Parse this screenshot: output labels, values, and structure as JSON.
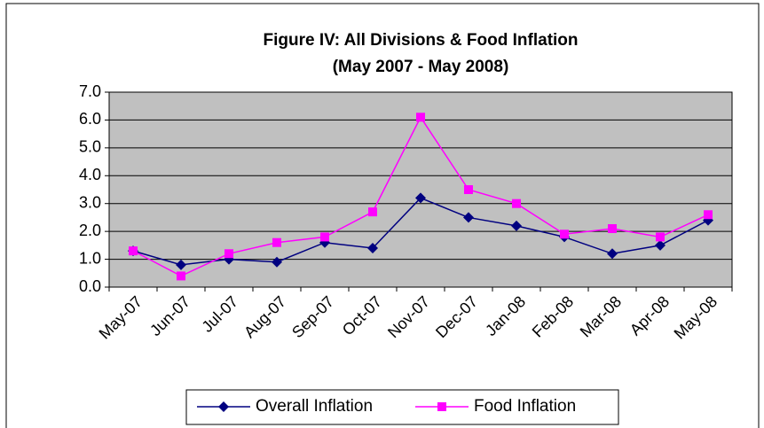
{
  "chart_data": {
    "type": "line",
    "title": "Figure IV: All Divisions & Food Inflation",
    "subtitle": "(May 2007 - May 2008)",
    "categories": [
      "May-07",
      "Jun-07",
      "Jul-07",
      "Aug-07",
      "Sep-07",
      "Oct-07",
      "Nov-07",
      "Dec-07",
      "Jan-08",
      "Feb-08",
      "Mar-08",
      "Apr-08",
      "May-08"
    ],
    "series": [
      {
        "name": "Overall Inflation",
        "color": "#000080",
        "marker": "diamond",
        "values": [
          1.3,
          0.8,
          1.0,
          0.9,
          1.6,
          1.4,
          3.2,
          2.5,
          2.2,
          1.8,
          1.2,
          1.5,
          2.4
        ]
      },
      {
        "name": "Food Inflation",
        "color": "#ff00ff",
        "marker": "square",
        "values": [
          1.3,
          0.4,
          1.2,
          1.6,
          1.8,
          2.7,
          6.1,
          3.5,
          3.0,
          1.9,
          2.1,
          1.8,
          2.6
        ]
      }
    ],
    "ylim": [
      0,
      7
    ],
    "yticks": [
      {
        "value": 0,
        "label": "0.0"
      },
      {
        "value": 1,
        "label": "1.0"
      },
      {
        "value": 2,
        "label": "2.0"
      },
      {
        "value": 3,
        "label": "3.0"
      },
      {
        "value": 4,
        "label": "4.0"
      },
      {
        "value": 5,
        "label": "5.0"
      },
      {
        "value": 6,
        "label": "6.0"
      },
      {
        "value": 7,
        "label": "7.0"
      }
    ],
    "grid": true,
    "plot_background": "#c0c0c0",
    "legend": "bottom"
  }
}
